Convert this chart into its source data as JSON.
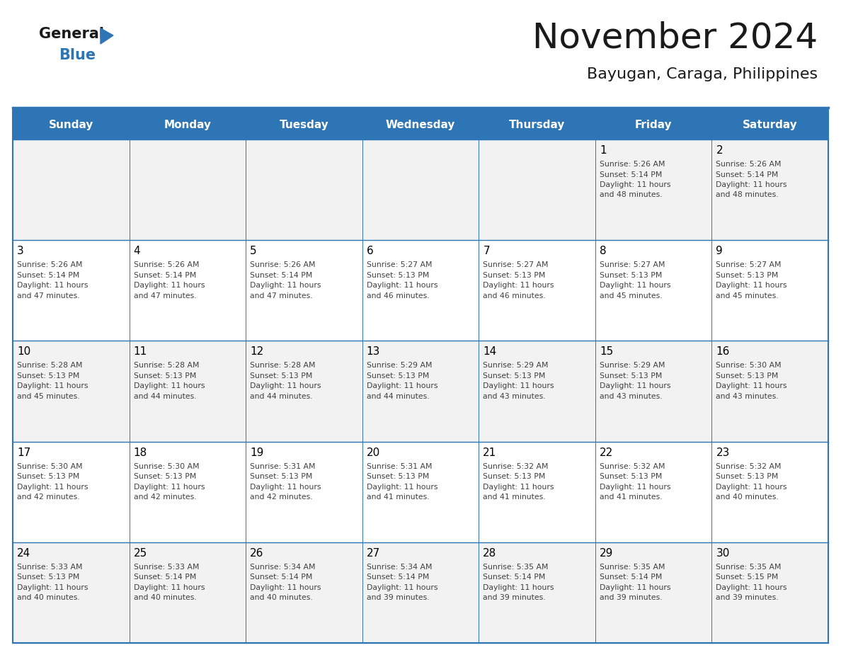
{
  "title": "November 2024",
  "subtitle": "Bayugan, Caraga, Philippines",
  "days_of_week": [
    "Sunday",
    "Monday",
    "Tuesday",
    "Wednesday",
    "Thursday",
    "Friday",
    "Saturday"
  ],
  "header_bg": "#2E75B6",
  "header_text": "#FFFFFF",
  "row_odd_bg": "#F2F2F2",
  "row_even_bg": "#FFFFFF",
  "border_color": "#2E75B6",
  "day_num_color": "#000000",
  "info_color": "#404040",
  "title_color": "#1a1a1a",
  "subtitle_color": "#1a1a1a",
  "logo_general_color": "#1a1a1a",
  "logo_blue_color": "#2E75B6",
  "calendar_data": [
    [
      null,
      null,
      null,
      null,
      null,
      {
        "day": 1,
        "sunrise": "5:26 AM",
        "sunset": "5:14 PM",
        "daylight_suffix": "48 minutes."
      },
      {
        "day": 2,
        "sunrise": "5:26 AM",
        "sunset": "5:14 PM",
        "daylight_suffix": "48 minutes."
      }
    ],
    [
      {
        "day": 3,
        "sunrise": "5:26 AM",
        "sunset": "5:14 PM",
        "daylight_suffix": "47 minutes."
      },
      {
        "day": 4,
        "sunrise": "5:26 AM",
        "sunset": "5:14 PM",
        "daylight_suffix": "47 minutes."
      },
      {
        "day": 5,
        "sunrise": "5:26 AM",
        "sunset": "5:14 PM",
        "daylight_suffix": "47 minutes."
      },
      {
        "day": 6,
        "sunrise": "5:27 AM",
        "sunset": "5:13 PM",
        "daylight_suffix": "46 minutes."
      },
      {
        "day": 7,
        "sunrise": "5:27 AM",
        "sunset": "5:13 PM",
        "daylight_suffix": "46 minutes."
      },
      {
        "day": 8,
        "sunrise": "5:27 AM",
        "sunset": "5:13 PM",
        "daylight_suffix": "45 minutes."
      },
      {
        "day": 9,
        "sunrise": "5:27 AM",
        "sunset": "5:13 PM",
        "daylight_suffix": "45 minutes."
      }
    ],
    [
      {
        "day": 10,
        "sunrise": "5:28 AM",
        "sunset": "5:13 PM",
        "daylight_suffix": "45 minutes."
      },
      {
        "day": 11,
        "sunrise": "5:28 AM",
        "sunset": "5:13 PM",
        "daylight_suffix": "44 minutes."
      },
      {
        "day": 12,
        "sunrise": "5:28 AM",
        "sunset": "5:13 PM",
        "daylight_suffix": "44 minutes."
      },
      {
        "day": 13,
        "sunrise": "5:29 AM",
        "sunset": "5:13 PM",
        "daylight_suffix": "44 minutes."
      },
      {
        "day": 14,
        "sunrise": "5:29 AM",
        "sunset": "5:13 PM",
        "daylight_suffix": "43 minutes."
      },
      {
        "day": 15,
        "sunrise": "5:29 AM",
        "sunset": "5:13 PM",
        "daylight_suffix": "43 minutes."
      },
      {
        "day": 16,
        "sunrise": "5:30 AM",
        "sunset": "5:13 PM",
        "daylight_suffix": "43 minutes."
      }
    ],
    [
      {
        "day": 17,
        "sunrise": "5:30 AM",
        "sunset": "5:13 PM",
        "daylight_suffix": "42 minutes."
      },
      {
        "day": 18,
        "sunrise": "5:30 AM",
        "sunset": "5:13 PM",
        "daylight_suffix": "42 minutes."
      },
      {
        "day": 19,
        "sunrise": "5:31 AM",
        "sunset": "5:13 PM",
        "daylight_suffix": "42 minutes."
      },
      {
        "day": 20,
        "sunrise": "5:31 AM",
        "sunset": "5:13 PM",
        "daylight_suffix": "41 minutes."
      },
      {
        "day": 21,
        "sunrise": "5:32 AM",
        "sunset": "5:13 PM",
        "daylight_suffix": "41 minutes."
      },
      {
        "day": 22,
        "sunrise": "5:32 AM",
        "sunset": "5:13 PM",
        "daylight_suffix": "41 minutes."
      },
      {
        "day": 23,
        "sunrise": "5:32 AM",
        "sunset": "5:13 PM",
        "daylight_suffix": "40 minutes."
      }
    ],
    [
      {
        "day": 24,
        "sunrise": "5:33 AM",
        "sunset": "5:13 PM",
        "daylight_suffix": "40 minutes."
      },
      {
        "day": 25,
        "sunrise": "5:33 AM",
        "sunset": "5:14 PM",
        "daylight_suffix": "40 minutes."
      },
      {
        "day": 26,
        "sunrise": "5:34 AM",
        "sunset": "5:14 PM",
        "daylight_suffix": "40 minutes."
      },
      {
        "day": 27,
        "sunrise": "5:34 AM",
        "sunset": "5:14 PM",
        "daylight_suffix": "39 minutes."
      },
      {
        "day": 28,
        "sunrise": "5:35 AM",
        "sunset": "5:14 PM",
        "daylight_suffix": "39 minutes."
      },
      {
        "day": 29,
        "sunrise": "5:35 AM",
        "sunset": "5:14 PM",
        "daylight_suffix": "39 minutes."
      },
      {
        "day": 30,
        "sunrise": "5:35 AM",
        "sunset": "5:15 PM",
        "daylight_suffix": "39 minutes."
      }
    ]
  ]
}
